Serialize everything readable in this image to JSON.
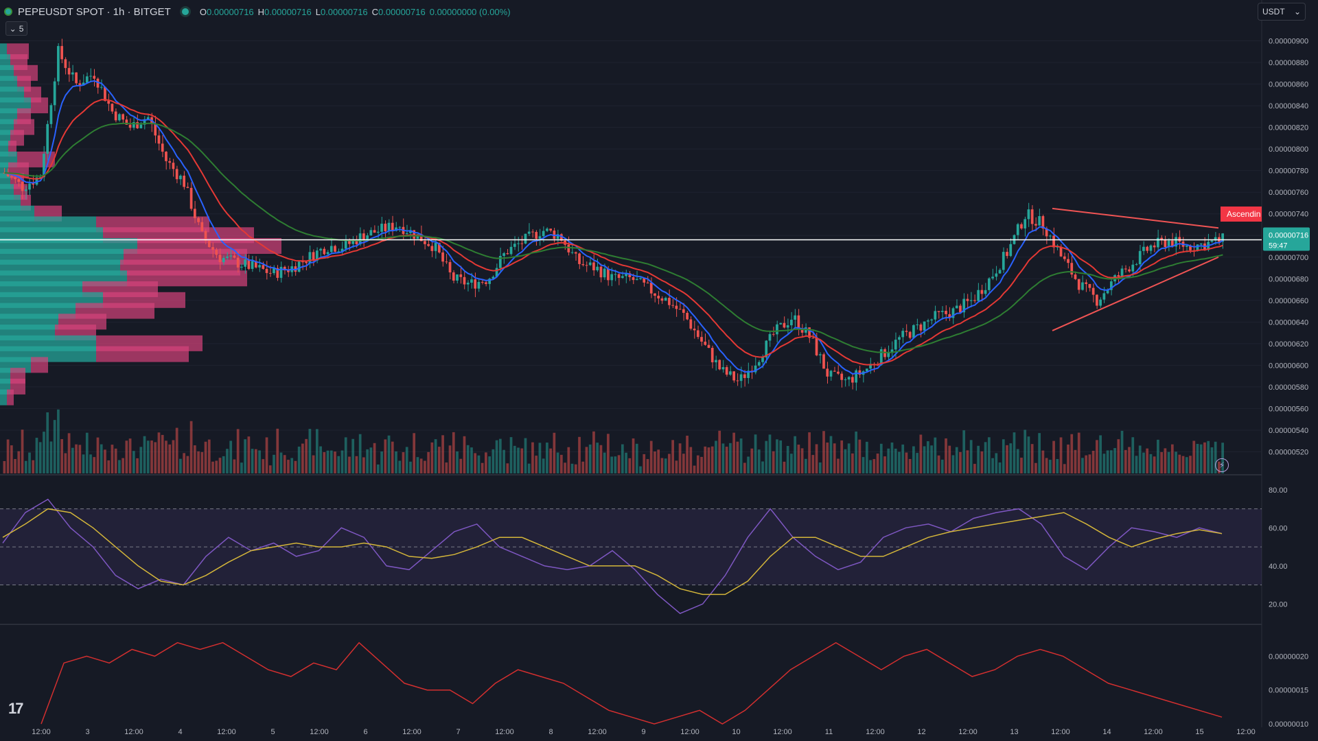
{
  "header": {
    "symbol": "PEPEUSDT SPOT · 1h · BITGET",
    "ohlc": [
      {
        "k": "O",
        "v": "0.00000716"
      },
      {
        "k": "H",
        "v": "0.00000716"
      },
      {
        "k": "L",
        "v": "0.00000716"
      },
      {
        "k": "C",
        "v": "0.00000716"
      },
      {
        "k": "",
        "v": "0.00000000 (0.00%)"
      }
    ],
    "collapse_count": "5",
    "currency": "USDT",
    "collapse_icon": "chevron-down-icon",
    "status_icon": "live-dot-icon",
    "logo_icon": "tradingview-logo-icon",
    "alert_icon": "lightning-icon"
  },
  "colors": {
    "background": "#161a25",
    "bull": "#26a69a",
    "bear": "#ef5350",
    "ema_fast": "#2962ff",
    "ema_mid": "#e53935",
    "ema_slow": "#2e7d32",
    "rsi": "#7e57c2",
    "rsi_ma": "#d4b63a",
    "lower": "#d32f2f"
  },
  "price_axis_labels": [
    "0.00000900",
    "0.00000880",
    "0.00000860",
    "0.00000840",
    "0.00000820",
    "0.00000800",
    "0.00000780",
    "0.00000760",
    "0.00000740",
    "0.00000720",
    "0.00000700",
    "0.00000680",
    "0.00000660",
    "0.00000640",
    "0.00000620",
    "0.00000600",
    "0.00000580",
    "0.00000560",
    "0.00000540",
    "0.00000520"
  ],
  "rsi_axis_labels": [
    "80.00",
    "60.00",
    "40.00",
    "20.00"
  ],
  "lower_axis_labels": [
    "0.00000020",
    "0.00000015",
    "0.00000010"
  ],
  "time_labels": [
    "12:00",
    "3",
    "12:00",
    "4",
    "12:00",
    "5",
    "12:00",
    "6",
    "12:00",
    "7",
    "12:00",
    "8",
    "12:00",
    "9",
    "12:00",
    "10",
    "12:00",
    "11",
    "12:00",
    "12",
    "12:00",
    "13",
    "12:00",
    "14",
    "12:00",
    "15",
    "12:00"
  ],
  "price_tag": {
    "value": "0.00000716",
    "countdown": "59:47"
  },
  "pattern_label": "Ascendin",
  "chart_data": [
    {
      "type": "candlestick",
      "title": "PEPEUSDT SPOT · 1h · BITGET",
      "y_range": [
        5e-06,
        9.2e-06
      ],
      "last_price": 7.16e-06,
      "x_ticks": [
        "12:00",
        "3",
        "12:00",
        "4",
        "12:00",
        "5",
        "12:00",
        "6",
        "12:00",
        "7",
        "12:00",
        "8",
        "12:00",
        "9",
        "12:00",
        "10",
        "12:00",
        "11",
        "12:00",
        "12",
        "12:00",
        "13",
        "12:00",
        "14",
        "12:00",
        "15",
        "12:00"
      ],
      "close_path": [
        7.78,
        7.65,
        7.75,
        8.9,
        8.6,
        8.7,
        8.35,
        8.2,
        8.3,
        7.9,
        7.7,
        7.2,
        7.0,
        6.95,
        6.9,
        6.85,
        6.9,
        7.0,
        7.1,
        7.1,
        7.2,
        7.25,
        7.3,
        7.2,
        7.1,
        6.8,
        6.75,
        6.8,
        7.05,
        7.15,
        7.25,
        7.2,
        6.95,
        6.9,
        6.8,
        6.8,
        6.7,
        6.6,
        6.45,
        6.2,
        5.95,
        5.85,
        6.05,
        6.3,
        6.45,
        6.25,
        5.9,
        5.85,
        5.95,
        6.1,
        6.25,
        6.35,
        6.45,
        6.5,
        6.6,
        6.8,
        7.05,
        7.4,
        7.3,
        7.0,
        6.75,
        6.6,
        6.8,
        6.95,
        7.1,
        7.15,
        7.1,
        7.12,
        7.16
      ],
      "volume_profile_prices": [
        8.9,
        8.8,
        8.7,
        8.6,
        8.5,
        8.4,
        8.3,
        8.2,
        8.1,
        8.0,
        7.9,
        7.8,
        7.7,
        7.6,
        7.5,
        7.4,
        7.3,
        7.2,
        7.1,
        7.0,
        6.9,
        6.8,
        6.7,
        6.6,
        6.5,
        6.4,
        6.3,
        6.2,
        6.1,
        6.0,
        5.9,
        5.8,
        5.7
      ],
      "volume_profile_buy": [
        10,
        15,
        20,
        25,
        35,
        45,
        25,
        20,
        15,
        12,
        25,
        12,
        15,
        20,
        30,
        50,
        140,
        150,
        200,
        180,
        175,
        185,
        120,
        150,
        110,
        85,
        80,
        140,
        140,
        45,
        15,
        15,
        10
      ],
      "volume_profile_sell": [
        32,
        25,
        35,
        20,
        25,
        25,
        20,
        30,
        20,
        12,
        55,
        30,
        20,
        20,
        15,
        40,
        165,
        220,
        210,
        180,
        175,
        175,
        110,
        120,
        115,
        70,
        60,
        155,
        135,
        25,
        22,
        22,
        10
      ],
      "trendlines": [
        {
          "from": [
            "13 03:00",
            7.45e-06
          ],
          "to": [
            "15 12:00",
            7.27e-06
          ]
        },
        {
          "from": [
            "13 12:00",
            6.32e-06
          ],
          "to": [
            "15 12:00",
            7e-06
          ]
        }
      ]
    },
    {
      "type": "line",
      "title": "RSI",
      "y_range": [
        10,
        85
      ],
      "bands": [
        30,
        50,
        70
      ],
      "series": [
        {
          "key": "rsi",
          "values": [
            52,
            68,
            75,
            60,
            50,
            35,
            28,
            33,
            30,
            45,
            55,
            48,
            52,
            45,
            48,
            60,
            55,
            40,
            38,
            48,
            58,
            62,
            50,
            45,
            40,
            38,
            40,
            48,
            38,
            25,
            15,
            20,
            35,
            55,
            70,
            55,
            45,
            38,
            42,
            55,
            60,
            62,
            58,
            65,
            68,
            70,
            62,
            45,
            38,
            50,
            60,
            58,
            55,
            60,
            57
          ]
        },
        {
          "key": "rsi_ma",
          "values": [
            55,
            62,
            70,
            68,
            60,
            50,
            40,
            32,
            30,
            35,
            42,
            48,
            50,
            52,
            50,
            50,
            52,
            50,
            45,
            44,
            46,
            50,
            55,
            55,
            50,
            45,
            40,
            40,
            40,
            35,
            28,
            25,
            25,
            32,
            45,
            55,
            55,
            50,
            45,
            45,
            50,
            55,
            58,
            60,
            62,
            64,
            66,
            68,
            62,
            55,
            50,
            54,
            57,
            59,
            57
          ]
        }
      ]
    },
    {
      "type": "line",
      "title": "",
      "y_range": [
        9.5e-08,
        2.45e-07
      ],
      "series": [
        {
          "key": "lower",
          "values": [
            0.1,
            0.19,
            0.2,
            0.19,
            0.21,
            0.2,
            0.22,
            0.21,
            0.22,
            0.2,
            0.18,
            0.17,
            0.19,
            0.18,
            0.22,
            0.19,
            0.16,
            0.15,
            0.15,
            0.13,
            0.16,
            0.18,
            0.17,
            0.16,
            0.14,
            0.12,
            0.11,
            0.1,
            0.11,
            0.12,
            0.1,
            0.12,
            0.15,
            0.18,
            0.2,
            0.22,
            0.2,
            0.18,
            0.2,
            0.21,
            0.19,
            0.17,
            0.18,
            0.2,
            0.21,
            0.2,
            0.18,
            0.16,
            0.15,
            0.14,
            0.13,
            0.12,
            0.11
          ]
        }
      ]
    }
  ]
}
